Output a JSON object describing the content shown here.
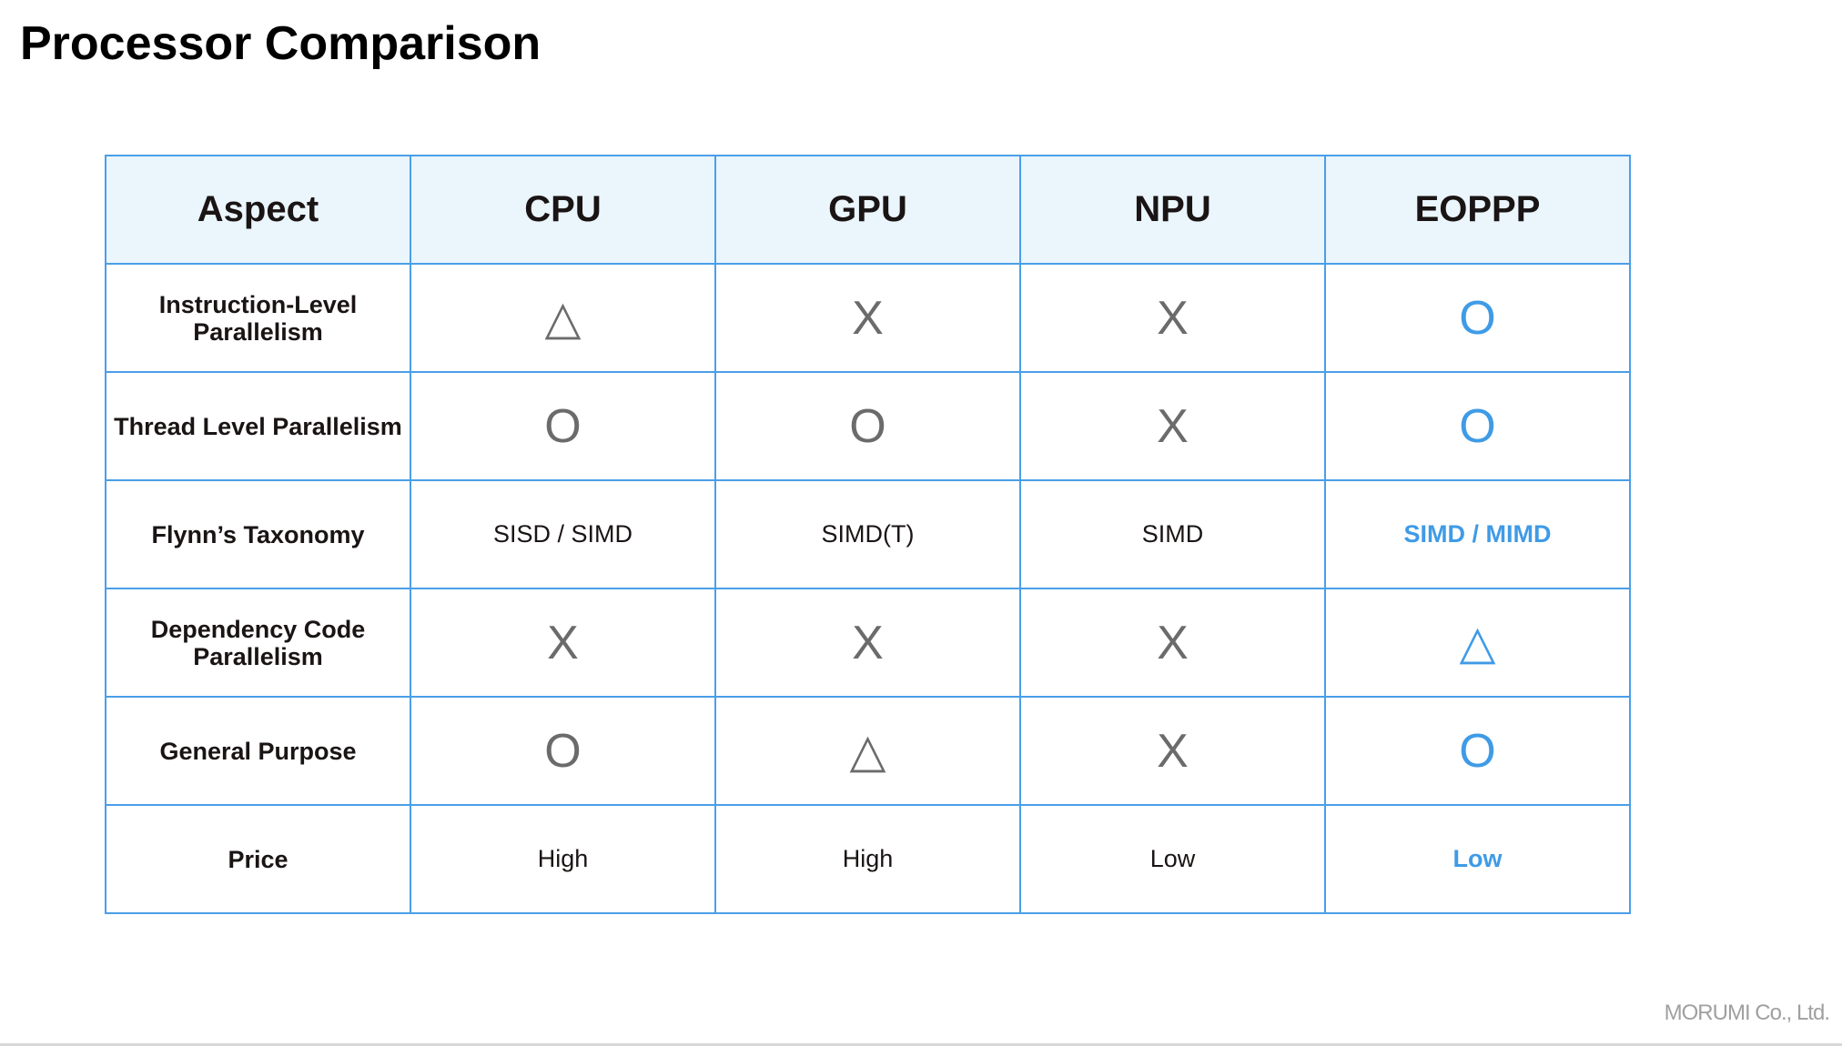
{
  "title": "Processor Comparison",
  "colors": {
    "accent": "#3f9be6",
    "border": "#4a9fe8",
    "header_bg": "#eaf5fc",
    "symbol": "#6b6b6b"
  },
  "legend_symbols": {
    "O": "circle-supported",
    "△": "triangle-partial",
    "X": "cross-unsupported"
  },
  "table": {
    "headers": [
      "Aspect",
      "CPU",
      "GPU",
      "NPU",
      "EOPPP"
    ],
    "rows": [
      {
        "aspect": "Instruction-Level Parallelism",
        "cells": [
          "△",
          "X",
          "X",
          "O"
        ],
        "kind": "sym"
      },
      {
        "aspect": "Thread Level Parallelism",
        "cells": [
          "O",
          "O",
          "X",
          "O"
        ],
        "kind": "sym"
      },
      {
        "aspect": "Flynn’s Taxonomy",
        "cells": [
          "SISD / SIMD",
          "SIMD(T)",
          "SIMD",
          "SIMD / MIMD"
        ],
        "kind": "val"
      },
      {
        "aspect": "Dependency Code Parallelism",
        "cells": [
          "X",
          "X",
          "X",
          "△"
        ],
        "kind": "sym"
      },
      {
        "aspect": "General Purpose",
        "cells": [
          "O",
          "△",
          "X",
          "O"
        ],
        "kind": "sym"
      },
      {
        "aspect": "Price",
        "cells": [
          "High",
          "High",
          "Low",
          "Low"
        ],
        "kind": "val"
      }
    ]
  },
  "footer": "MORUMI Co., Ltd."
}
